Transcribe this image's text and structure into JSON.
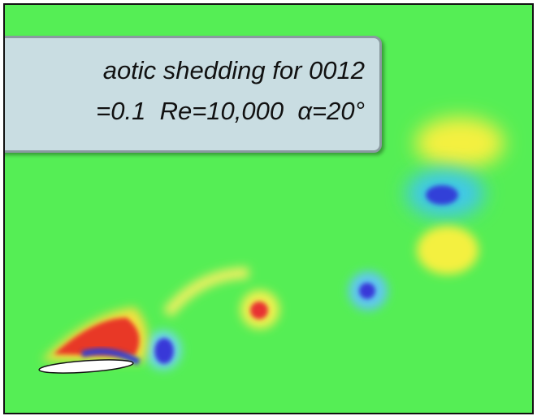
{
  "annotation": {
    "line1": "aotic shedding for 0012",
    "line2": "=0.1  Re=10,000  α=20°"
  }
}
